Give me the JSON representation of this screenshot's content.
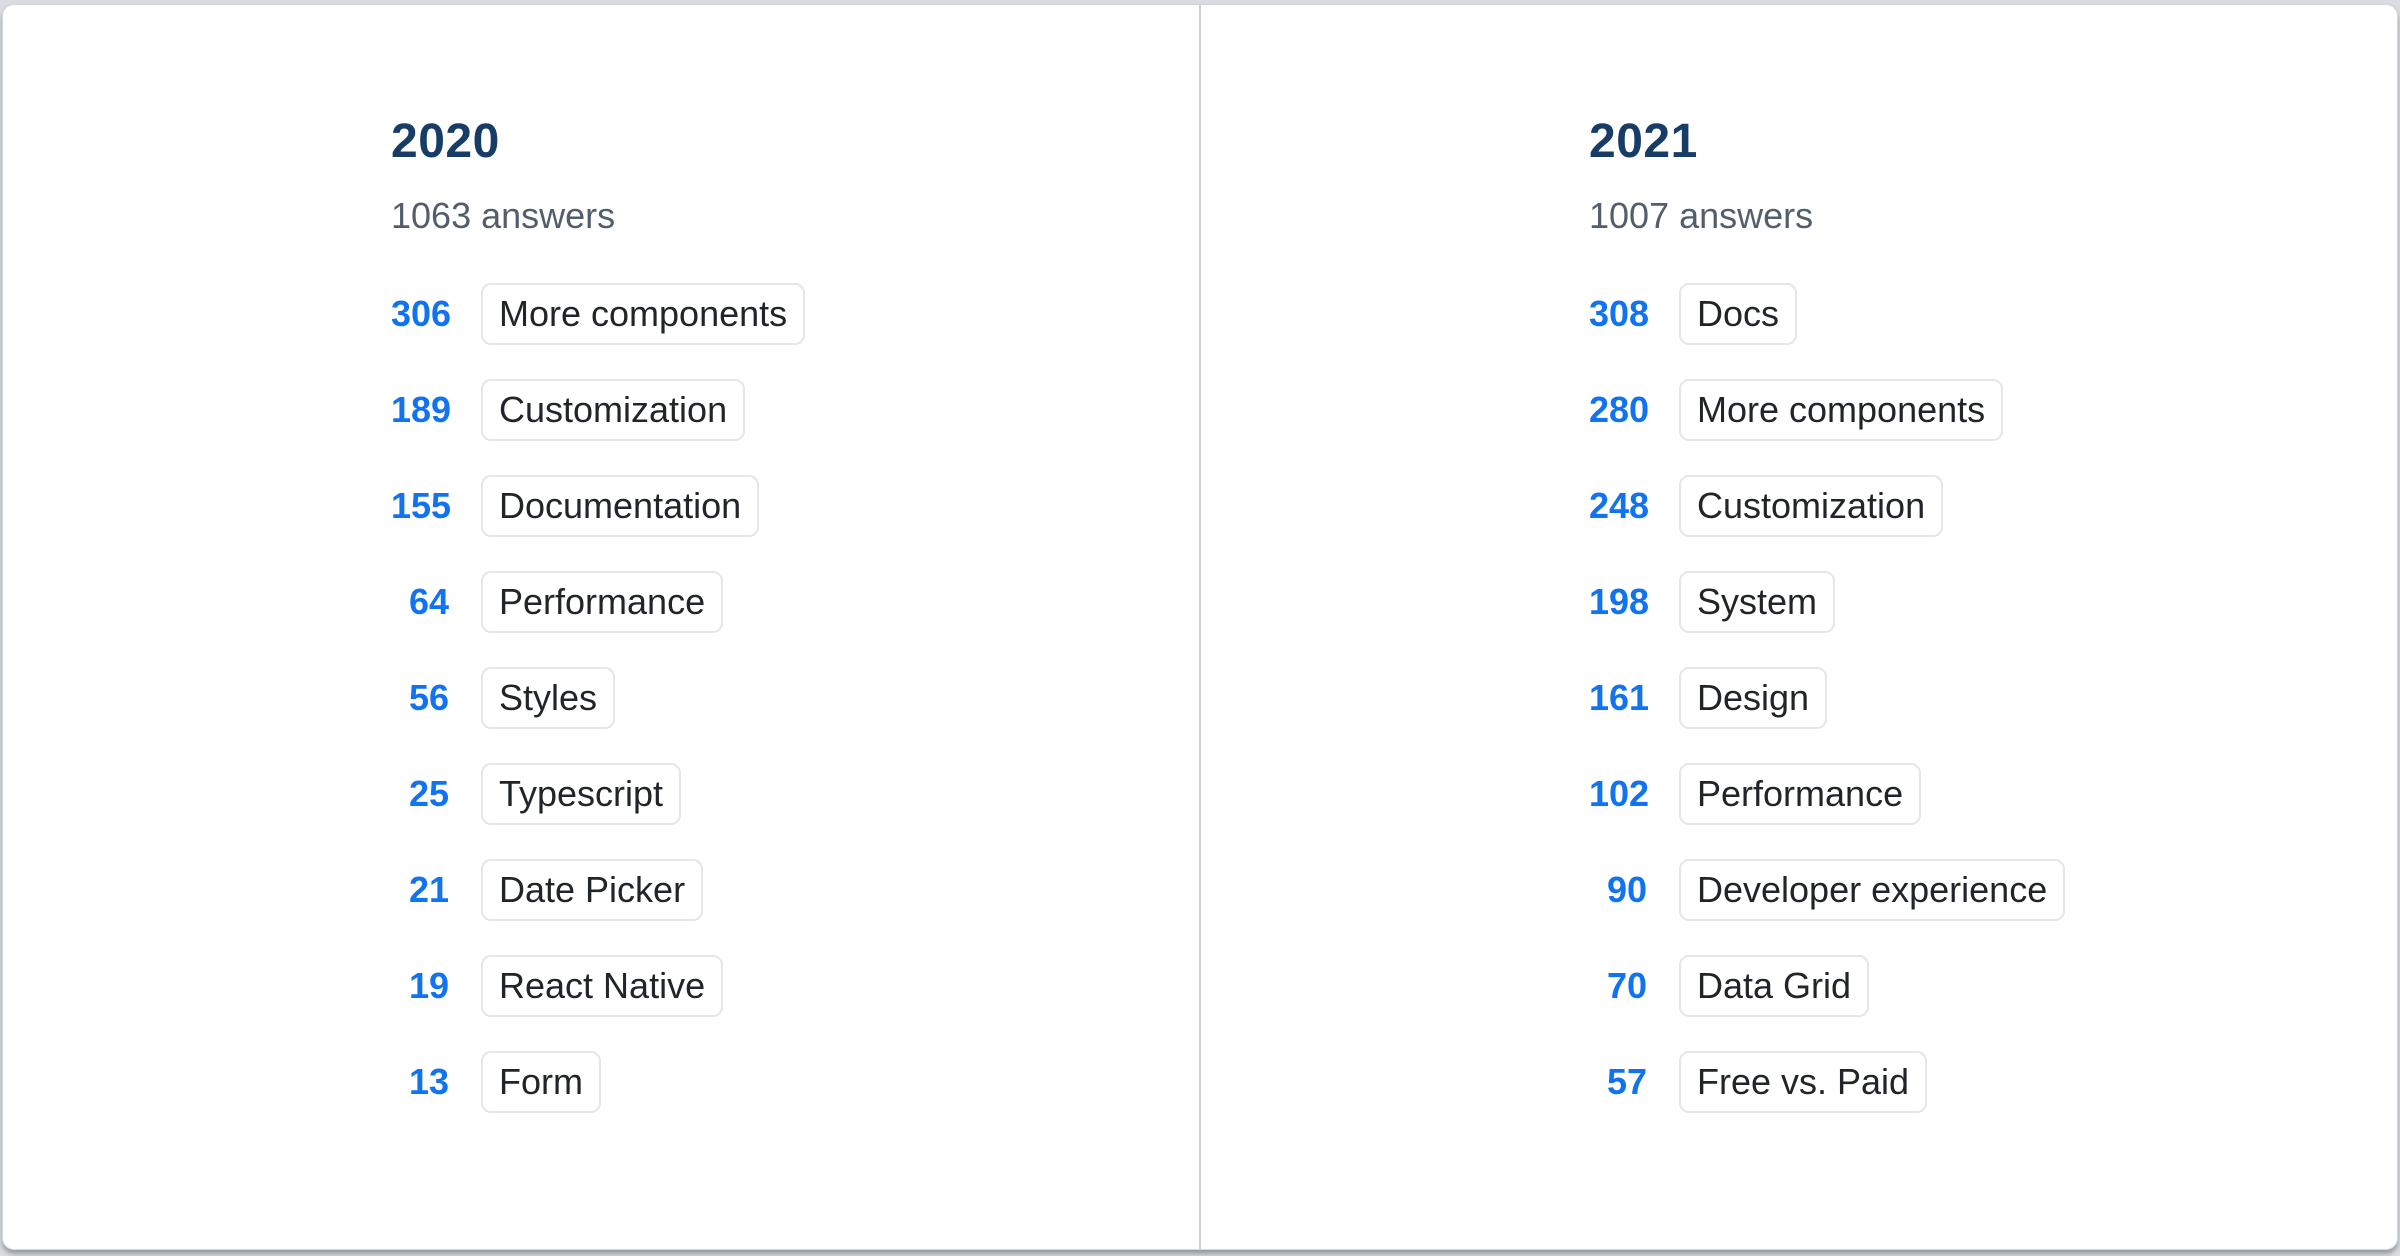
{
  "colors": {
    "page_background": "#d9dde2",
    "card_background": "#ffffff",
    "year_title": "#173d66",
    "count_accent": "#1273f0",
    "subtitle_gray": "#525e6b",
    "tag_text": "#212529",
    "tag_border": "#e4e6ea",
    "divider": "#ccd1d8"
  },
  "chart_data": [
    {
      "type": "table",
      "title": "2020",
      "subtitle": "1063 answers",
      "categories": [
        "More components",
        "Customization",
        "Documentation",
        "Performance",
        "Styles",
        "Typescript",
        "Date Picker",
        "React Native",
        "Form"
      ],
      "values": [
        306,
        189,
        155,
        64,
        56,
        25,
        21,
        19,
        13
      ]
    },
    {
      "type": "table",
      "title": "2021",
      "subtitle": "1007 answers",
      "categories": [
        "Docs",
        "More components",
        "Customization",
        "System",
        "Design",
        "Performance",
        "Developer experience",
        "Data Grid",
        "Free vs. Paid"
      ],
      "values": [
        308,
        280,
        248,
        198,
        161,
        102,
        90,
        70,
        57
      ]
    }
  ]
}
